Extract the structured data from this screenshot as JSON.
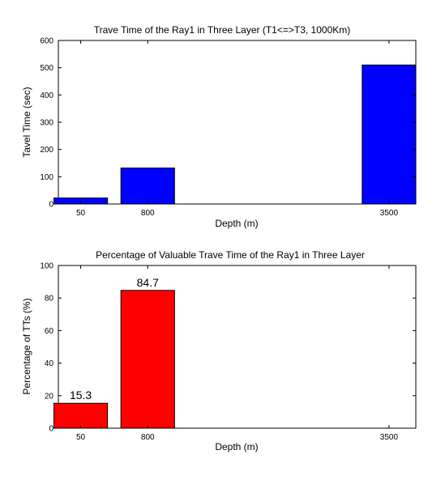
{
  "chart_data": [
    {
      "type": "bar",
      "title": "Trave Time of the Ray1 in Three Layer (T1<=>T3, 1000Km)",
      "xlabel": "Depth (m)",
      "ylabel": "Tavel Time (sec)",
      "x": [
        50,
        800,
        3500
      ],
      "x_tick_labels": [
        "50",
        "800",
        "3500"
      ],
      "xlim": [
        -200,
        3800
      ],
      "bar_width": 600,
      "values": [
        22,
        132,
        510
      ],
      "ylim": [
        0,
        600
      ],
      "y_ticks": [
        0,
        100,
        200,
        300,
        400,
        500,
        600
      ],
      "y_tick_labels": [
        "0",
        "100",
        "200",
        "300",
        "400",
        "500",
        "600"
      ],
      "bar_color": "#0000ff",
      "data_labels": [],
      "grid": false
    },
    {
      "type": "bar",
      "title": "Percentage of Valuable Trave Time of the Ray1 in Three Layer",
      "xlabel": "Depth (m)",
      "ylabel": "Percentage of TTs (%)",
      "x": [
        50,
        800,
        3500
      ],
      "x_tick_labels": [
        "50",
        "800",
        "3500"
      ],
      "xlim": [
        -200,
        3800
      ],
      "bar_width": 600,
      "values": [
        15.3,
        84.7,
        0
      ],
      "ylim": [
        0,
        100
      ],
      "y_ticks": [
        0,
        20,
        40,
        60,
        80,
        100
      ],
      "y_tick_labels": [
        "0",
        "20",
        "40",
        "60",
        "80",
        "100"
      ],
      "bar_color": "#ff0000",
      "data_labels": [
        "15.3",
        "84.7",
        ""
      ],
      "grid": false
    }
  ]
}
